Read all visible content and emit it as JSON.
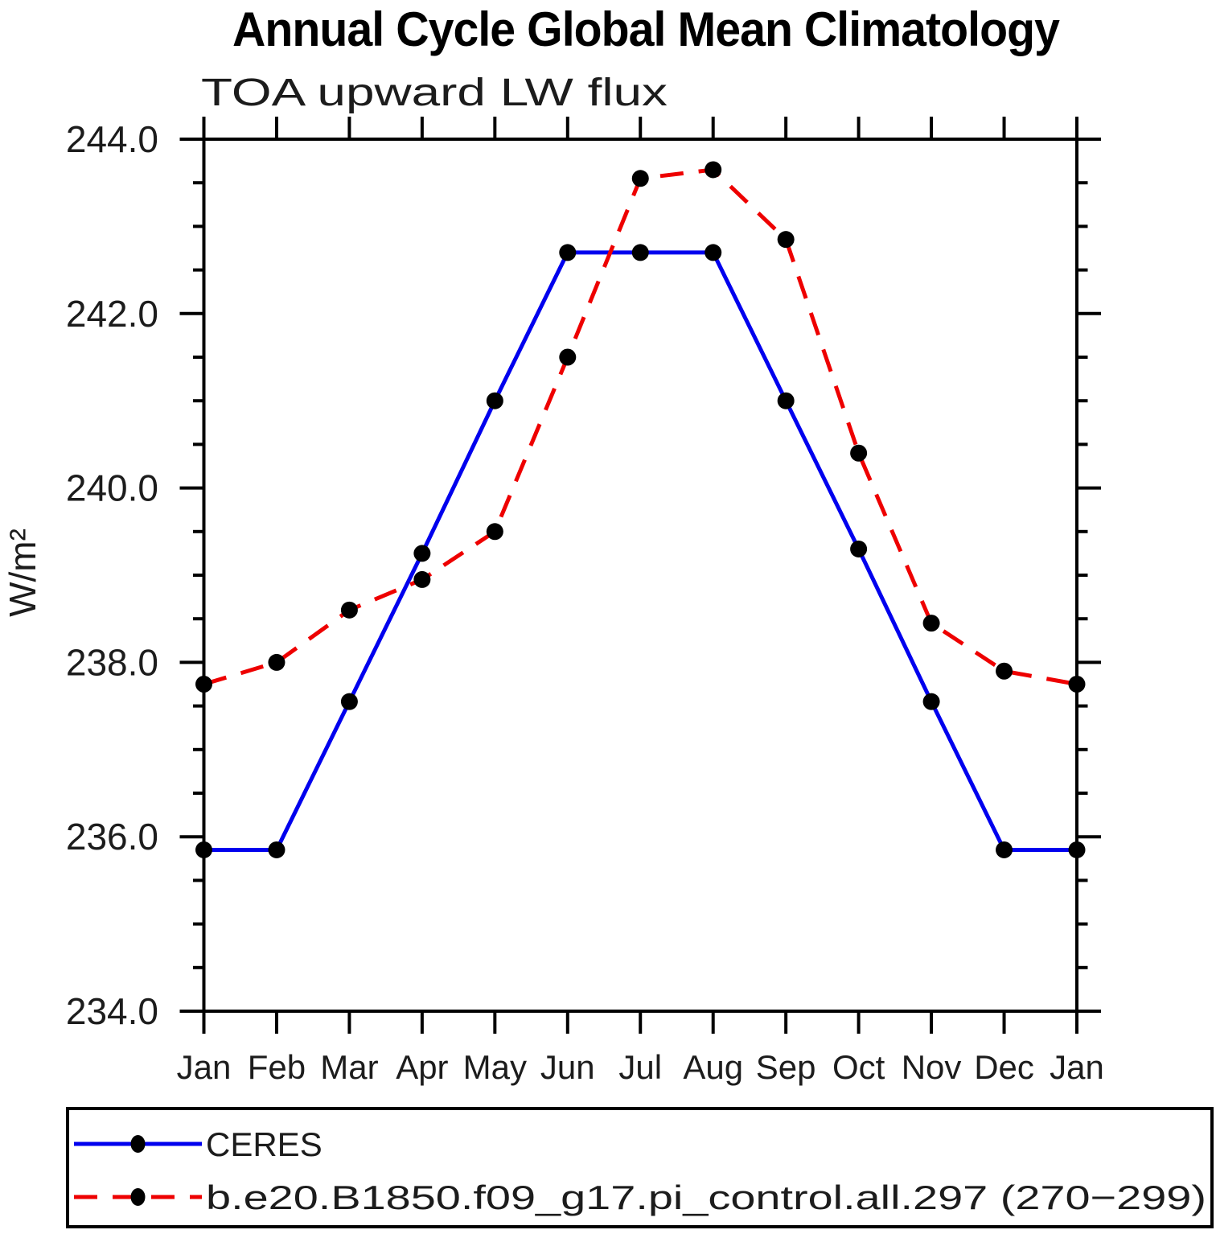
{
  "chart_data": {
    "type": "line",
    "title": "Annual Cycle Global Mean Climatology",
    "subtitle": "TOA upward LW flux",
    "ylabel": "W/m²",
    "xlabel": "",
    "x_categories": [
      "Jan",
      "Feb",
      "Mar",
      "Apr",
      "May",
      "Jun",
      "Jul",
      "Aug",
      "Sep",
      "Oct",
      "Nov",
      "Dec",
      "Jan"
    ],
    "ylim": [
      234.0,
      244.0
    ],
    "y_major_tick_step": 2.0,
    "y_minor_tick_step": 0.5,
    "y_tick_labels": [
      "234.0",
      "236.0",
      "238.0",
      "240.0",
      "242.0",
      "244.0"
    ],
    "grid": false,
    "legend_position": "bottom",
    "marker_color": "#000000",
    "series": [
      {
        "name": "CERES",
        "color": "#0000ee",
        "style": "solid",
        "marker": "circle",
        "values": [
          235.85,
          235.85,
          237.55,
          239.25,
          241.0,
          242.7,
          242.7,
          242.7,
          241.0,
          239.3,
          237.55,
          235.85,
          235.85
        ]
      },
      {
        "name": "b.e20.B1850.f09_g17.pi_control.all.297 (270−299)",
        "color": "#ee0000",
        "style": "dashed",
        "marker": "circle",
        "values": [
          237.75,
          238.0,
          238.6,
          238.95,
          239.5,
          241.5,
          243.55,
          243.65,
          242.85,
          240.4,
          238.45,
          237.9,
          237.75
        ]
      }
    ]
  }
}
